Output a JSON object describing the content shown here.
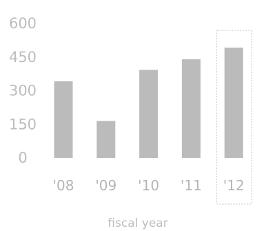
{
  "chart_data": {
    "type": "bar",
    "categories": [
      "'08",
      "'09",
      "'10",
      "'11",
      "'12"
    ],
    "values": [
      342,
      165,
      393,
      440,
      492
    ],
    "y_ticks": [
      "600",
      "450",
      "300",
      "150",
      "0"
    ],
    "xlabel": "fiscal year",
    "ylabel": "",
    "title": "",
    "ylim": [
      0,
      600
    ],
    "grid": false,
    "highlighted_category": "'12",
    "bar_color": "#bbbbbb",
    "text_color": "#bdbdbd"
  }
}
